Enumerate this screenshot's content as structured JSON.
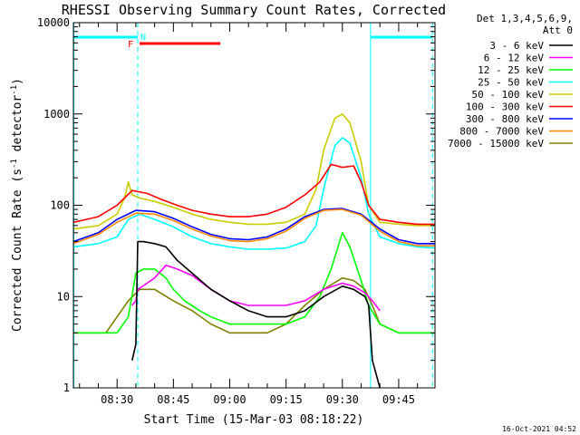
{
  "chart_data": {
    "type": "line",
    "title": "RHESSI Observing Summary Count Rates, Corrected",
    "ylabel_main": "Corrected Count Rate (s",
    "ylabel_sup1": "-1",
    "ylabel_mid": " detector",
    "ylabel_sup2": "-1",
    "ylabel_end": ")",
    "xlabel": "Start Time (15-Mar-03 08:18:22)",
    "date_stamp": "16-Oct-2021 04:52",
    "y_scale": "log",
    "ylim": [
      1,
      10000
    ],
    "xlim": [
      "08:18:22",
      "09:54:40"
    ],
    "x_ticks": [
      "08:30",
      "08:45",
      "09:00",
      "09:15",
      "09:30",
      "09:45"
    ],
    "y_ticks": [
      "1",
      "10",
      "100",
      "1000",
      "10000"
    ],
    "legend_header": [
      "Det 1,3,4,5,6,9,",
      "Att 0"
    ],
    "flags": {
      "night_label": "N",
      "flare_label": "F",
      "night_intervals": [
        [
          "08:18:22",
          "08:35:30"
        ],
        [
          "09:37:30",
          "09:54:00"
        ]
      ],
      "flare_interval": [
        "08:36:00",
        "08:57:30"
      ],
      "night_color": "#00ffff",
      "flare_color": "#ff0000"
    },
    "vertical_markers": {
      "solid": [
        "08:18:30",
        "09:37:30"
      ],
      "dashed": [
        "08:35:30",
        "09:54:00"
      ]
    },
    "series": [
      {
        "name": "3 - 6 keV",
        "color": "#000000",
        "x": [
          "08:34:00",
          "08:35:00",
          "08:35:30",
          "08:37:00",
          "08:40:00",
          "08:43:00",
          "08:46:00",
          "08:50:00",
          "08:55:00",
          "09:00:00",
          "09:05:00",
          "09:10:00",
          "09:15:00",
          "09:20:00",
          "09:25:00",
          "09:30:00",
          "09:33:00",
          "09:36:00",
          "09:37:00",
          "09:38:00",
          "09:40:00"
        ],
        "values": [
          2,
          3,
          40,
          40,
          38,
          35,
          25,
          18,
          12,
          9,
          7,
          6,
          6,
          7,
          10,
          13,
          12,
          10,
          8,
          2,
          1
        ]
      },
      {
        "name": "6 - 12 keV",
        "color": "#ff00ff",
        "x": [
          "08:34:00",
          "08:35:00",
          "08:35:30",
          "08:38:00",
          "08:40:00",
          "08:43:00",
          "08:46:00",
          "08:50:00",
          "08:55:00",
          "09:00:00",
          "09:05:00",
          "09:10:00",
          "09:15:00",
          "09:20:00",
          "09:25:00",
          "09:30:00",
          "09:33:00",
          "09:36:00",
          "09:38:00",
          "09:40:00"
        ],
        "values": [
          8,
          9,
          12,
          14,
          16,
          22,
          20,
          17,
          12,
          9,
          8,
          8,
          8,
          9,
          12,
          14,
          13,
          11,
          9,
          7
        ]
      },
      {
        "name": "12 - 25 keV",
        "color": "#00ff00",
        "x": [
          "08:18:22",
          "08:25:00",
          "08:30:00",
          "08:33:00",
          "08:35:00",
          "08:37:00",
          "08:40:00",
          "08:43:00",
          "08:45:00",
          "08:48:00",
          "08:52:00",
          "08:55:00",
          "09:00:00",
          "09:05:00",
          "09:10:00",
          "09:15:00",
          "09:20:00",
          "09:24:00",
          "09:27:00",
          "09:30:00",
          "09:32:00",
          "09:35:00",
          "09:37:00",
          "09:40:00",
          "09:45:00",
          "09:50:00",
          "09:54:40"
        ],
        "values": [
          4,
          4,
          4,
          6,
          18,
          20,
          20,
          16,
          12,
          9,
          7,
          6,
          5,
          5,
          5,
          5,
          6,
          10,
          20,
          50,
          35,
          15,
          8,
          5,
          4,
          4,
          4
        ]
      },
      {
        "name": "25 - 50 keV",
        "color": "#00ffff",
        "x": [
          "08:18:22",
          "08:25:00",
          "08:30:00",
          "08:33:00",
          "08:36:00",
          "08:40:00",
          "08:45:00",
          "08:50:00",
          "08:55:00",
          "09:00:00",
          "09:05:00",
          "09:10:00",
          "09:15:00",
          "09:20:00",
          "09:23:00",
          "09:25:00",
          "09:28:00",
          "09:30:00",
          "09:32:00",
          "09:35:00",
          "09:37:00",
          "09:40:00",
          "09:45:00",
          "09:50:00",
          "09:54:40"
        ],
        "values": [
          35,
          38,
          45,
          70,
          80,
          70,
          58,
          45,
          38,
          35,
          33,
          33,
          34,
          40,
          60,
          150,
          450,
          550,
          480,
          200,
          80,
          45,
          38,
          35,
          34
        ]
      },
      {
        "name": "50 - 100 keV",
        "color": "#cccc00",
        "x": [
          "08:18:22",
          "08:25:00",
          "08:30:00",
          "08:32:00",
          "08:33:00",
          "08:34:00",
          "08:36:00",
          "08:40:00",
          "08:45:00",
          "08:50:00",
          "08:55:00",
          "09:00:00",
          "09:05:00",
          "09:10:00",
          "09:15:00",
          "09:20:00",
          "09:23:00",
          "09:25:00",
          "09:28:00",
          "09:30:00",
          "09:32:00",
          "09:35:00",
          "09:37:00",
          "09:40:00",
          "09:45:00",
          "09:50:00",
          "09:54:40"
        ],
        "values": [
          55,
          60,
          80,
          120,
          180,
          130,
          120,
          110,
          95,
          80,
          70,
          65,
          62,
          62,
          65,
          80,
          150,
          400,
          900,
          1000,
          800,
          300,
          100,
          65,
          62,
          60,
          60
        ]
      },
      {
        "name": "100 - 300 keV",
        "color": "#ff0000",
        "x": [
          "08:18:22",
          "08:25:00",
          "08:30:00",
          "08:34:00",
          "08:38:00",
          "08:42:00",
          "08:46:00",
          "08:50:00",
          "08:55:00",
          "09:00:00",
          "09:05:00",
          "09:10:00",
          "09:15:00",
          "09:20:00",
          "09:24:00",
          "09:27:00",
          "09:30:00",
          "09:33:00",
          "09:35:00",
          "09:37:00",
          "09:40:00",
          "09:45:00",
          "09:50:00",
          "09:54:40"
        ],
        "values": [
          65,
          75,
          100,
          145,
          135,
          115,
          100,
          88,
          80,
          75,
          75,
          80,
          95,
          130,
          180,
          280,
          260,
          270,
          180,
          100,
          70,
          65,
          62,
          62
        ]
      },
      {
        "name": "300 - 800 keV",
        "color": "#0000ff",
        "x": [
          "08:18:22",
          "08:25:00",
          "08:30:00",
          "08:35:00",
          "08:40:00",
          "08:45:00",
          "08:50:00",
          "08:55:00",
          "09:00:00",
          "09:05:00",
          "09:10:00",
          "09:15:00",
          "09:20:00",
          "09:25:00",
          "09:30:00",
          "09:35:00",
          "09:40:00",
          "09:45:00",
          "09:50:00",
          "09:54:40"
        ],
        "values": [
          40,
          50,
          70,
          88,
          85,
          72,
          58,
          48,
          43,
          42,
          45,
          55,
          75,
          90,
          92,
          80,
          55,
          42,
          38,
          38
        ]
      },
      {
        "name": "800 - 7000 keV",
        "color": "#ff8800",
        "x": [
          "08:18:22",
          "08:25:00",
          "08:30:00",
          "08:35:00",
          "08:40:00",
          "08:45:00",
          "08:50:00",
          "08:55:00",
          "09:00:00",
          "09:05:00",
          "09:10:00",
          "09:15:00",
          "09:20:00",
          "09:25:00",
          "09:30:00",
          "09:35:00",
          "09:40:00",
          "09:45:00",
          "09:50:00",
          "09:54:40"
        ],
        "values": [
          38,
          48,
          65,
          82,
          80,
          68,
          55,
          46,
          41,
          40,
          43,
          52,
          72,
          88,
          90,
          78,
          52,
          40,
          36,
          36
        ]
      },
      {
        "name": "7000 - 15000 keV",
        "color": "#808000",
        "x": [
          "08:18:22",
          "08:23:00",
          "08:27:00",
          "08:30:00",
          "08:33:00",
          "08:36:00",
          "08:40:00",
          "08:45:00",
          "08:50:00",
          "08:55:00",
          "09:00:00",
          "09:05:00",
          "09:10:00",
          "09:15:00",
          "09:20:00",
          "09:25:00",
          "09:30:00",
          "09:33:00",
          "09:36:00",
          "09:38:00",
          "09:40:00",
          "09:45:00",
          "09:50:00",
          "09:54:40"
        ],
        "values": [
          4,
          4,
          4,
          6,
          9,
          12,
          12,
          9,
          7,
          5,
          4,
          4,
          4,
          5,
          8,
          12,
          16,
          15,
          12,
          8,
          5,
          4,
          4,
          4
        ]
      }
    ]
  }
}
